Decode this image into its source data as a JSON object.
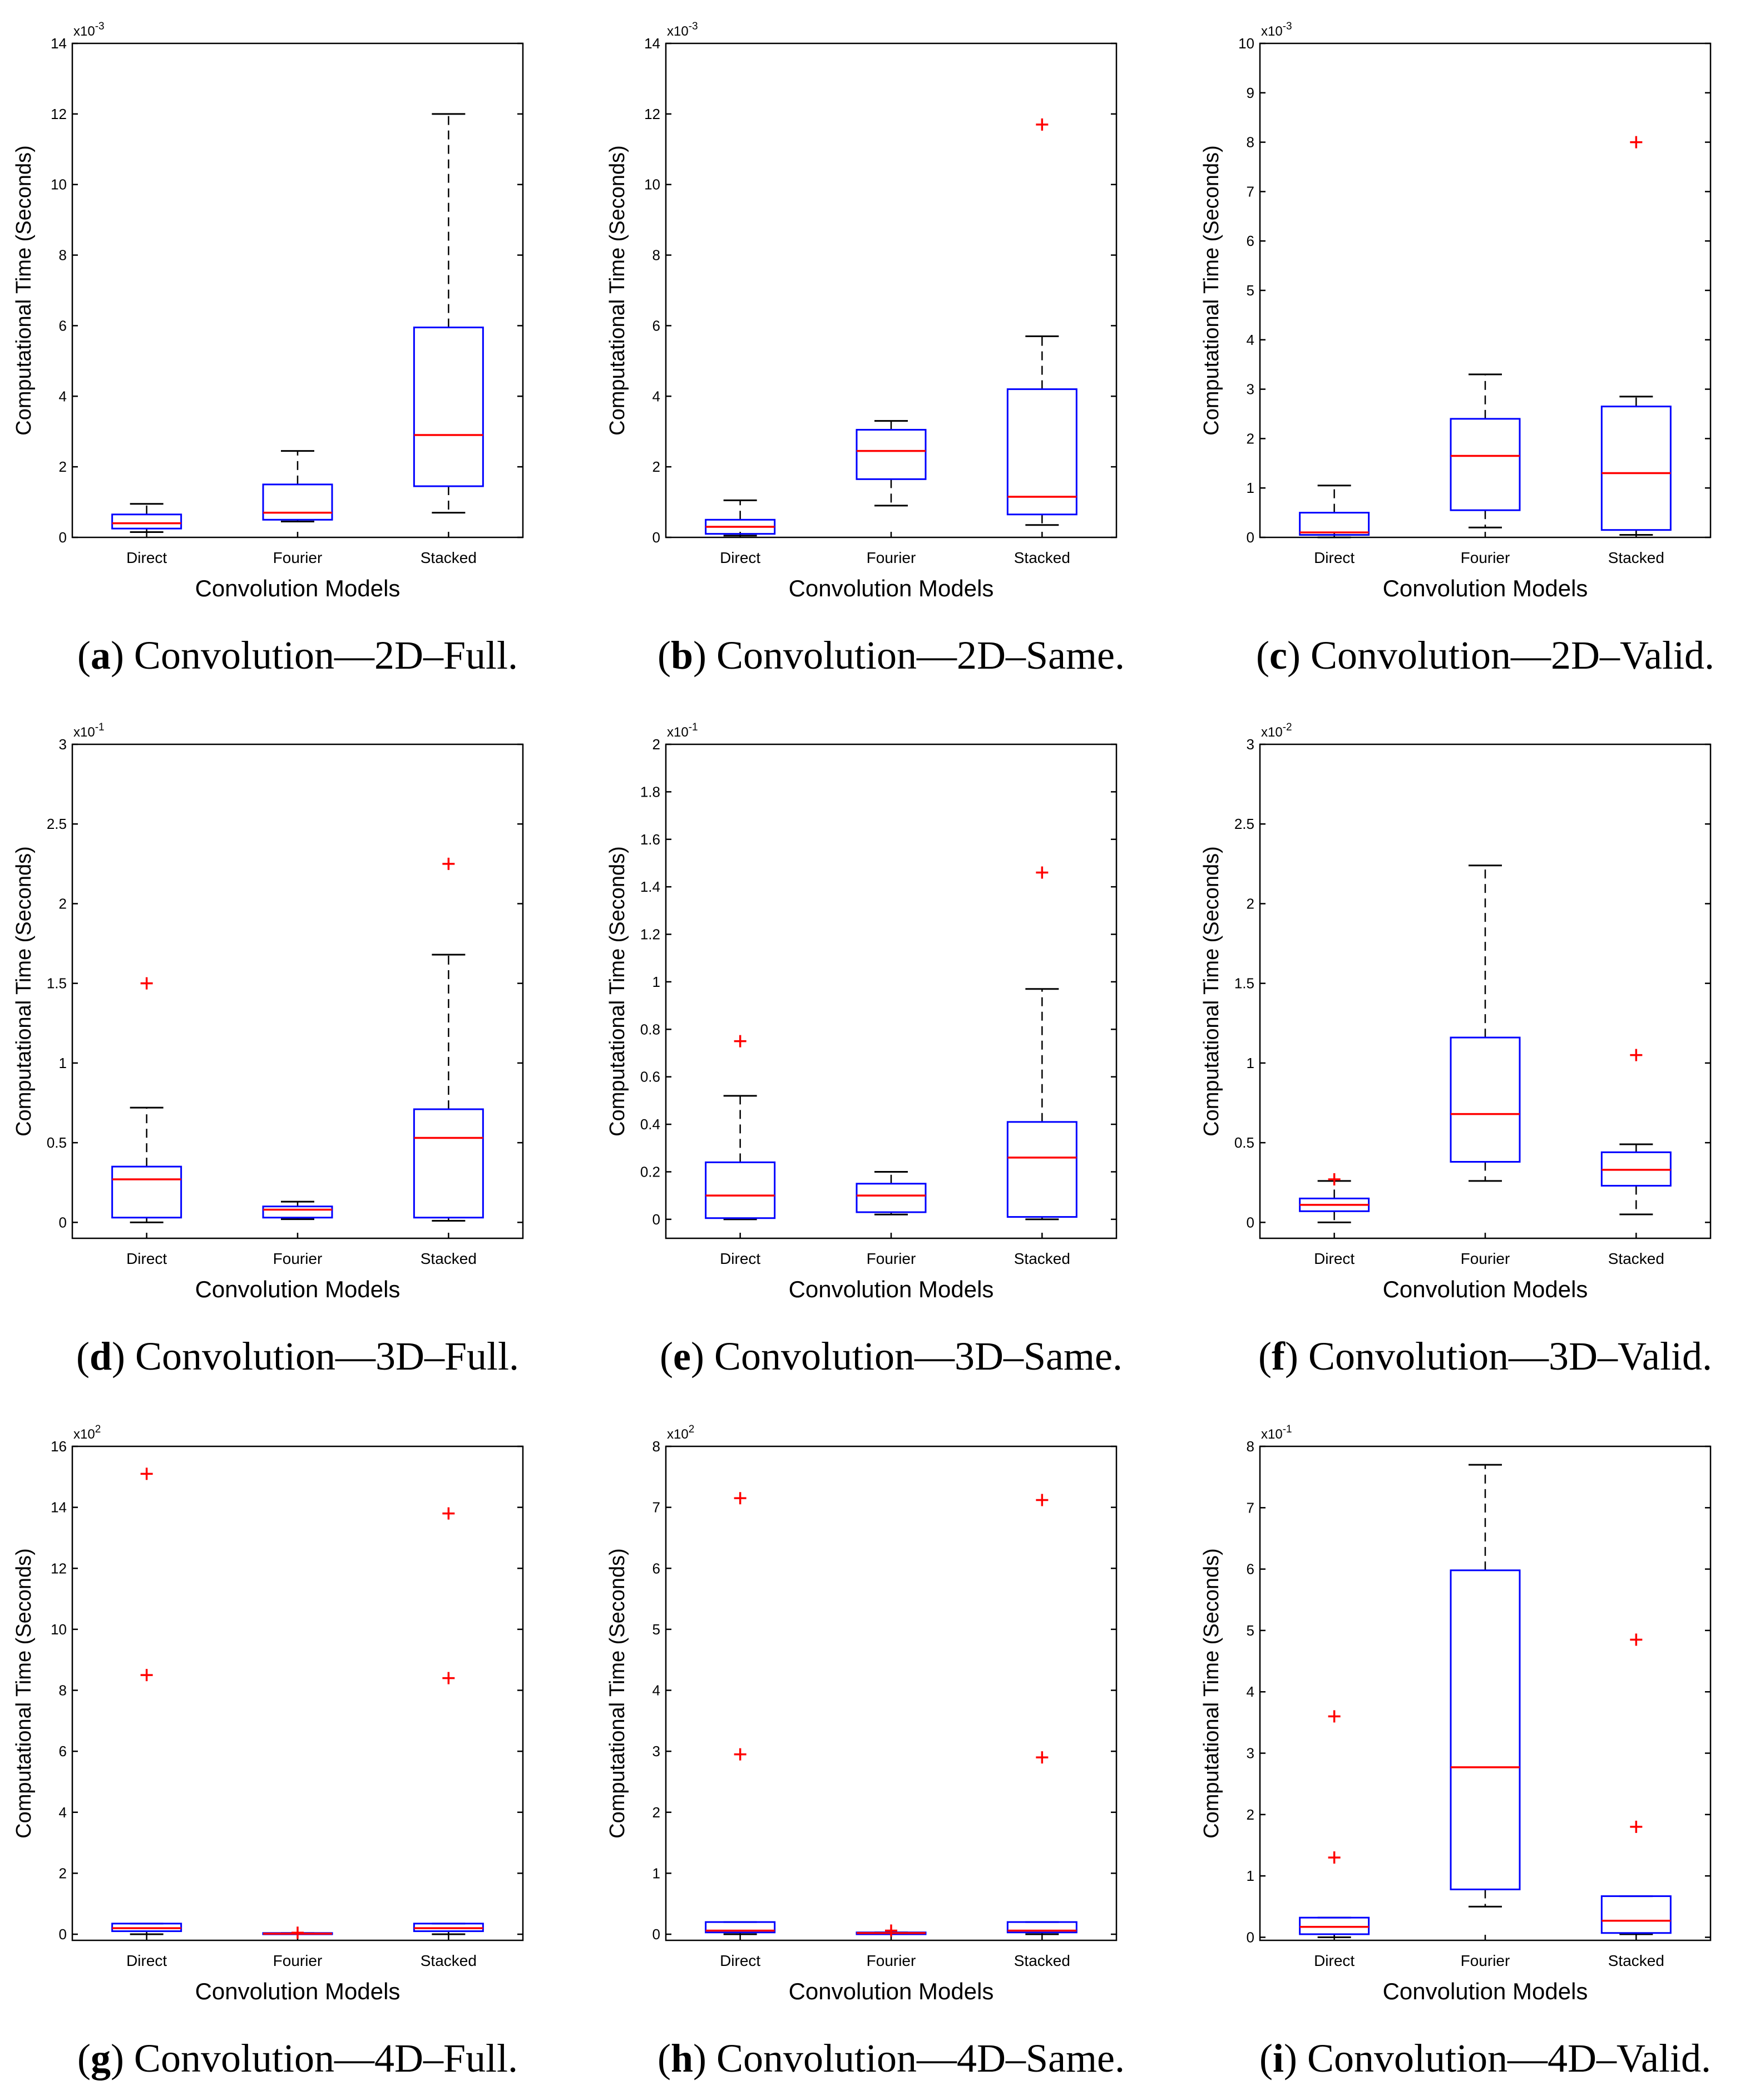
{
  "figure": {
    "xlabel": "Convolution Models",
    "ylabel": "Computational Time (Seconds)",
    "categories": [
      "Direct",
      "Fourier",
      "Stacked"
    ]
  },
  "chart_data": [
    {
      "type": "box",
      "panel": "a",
      "caption": "Convolution—2D–Full.",
      "exponent_label": "x10-3",
      "exponent_base": "x10",
      "exponent_power": "-3",
      "title": "",
      "xlabel": "Convolution Models",
      "ylabel": "Computational Time (Seconds)",
      "ylim": [
        0,
        14
      ],
      "yticks": [
        0,
        2,
        4,
        6,
        8,
        10,
        12,
        14
      ],
      "series": [
        {
          "name": "Direct",
          "whisker_low": 0.15,
          "q1": 0.25,
          "median": 0.4,
          "q3": 0.65,
          "whisker_high": 0.95,
          "outliers": []
        },
        {
          "name": "Fourier",
          "whisker_low": 0.45,
          "q1": 0.5,
          "median": 0.7,
          "q3": 1.5,
          "whisker_high": 2.45,
          "outliers": []
        },
        {
          "name": "Stacked",
          "whisker_low": 0.7,
          "q1": 1.45,
          "median": 2.9,
          "q3": 5.95,
          "whisker_high": 12.0,
          "outliers": []
        }
      ]
    },
    {
      "type": "box",
      "panel": "b",
      "caption": "Convolution—2D–Same.",
      "exponent_label": "x10-3",
      "exponent_base": "x10",
      "exponent_power": "-3",
      "title": "",
      "xlabel": "Convolution Models",
      "ylabel": "Computational Time (Seconds)",
      "ylim": [
        0,
        14
      ],
      "yticks": [
        0,
        2,
        4,
        6,
        8,
        10,
        12,
        14
      ],
      "series": [
        {
          "name": "Direct",
          "whisker_low": 0.05,
          "q1": 0.1,
          "median": 0.3,
          "q3": 0.5,
          "whisker_high": 1.05,
          "outliers": []
        },
        {
          "name": "Fourier",
          "whisker_low": 0.9,
          "q1": 1.65,
          "median": 2.45,
          "q3": 3.05,
          "whisker_high": 3.3,
          "outliers": []
        },
        {
          "name": "Stacked",
          "whisker_low": 0.35,
          "q1": 0.65,
          "median": 1.15,
          "q3": 4.2,
          "whisker_high": 5.7,
          "outliers": [
            11.7
          ]
        }
      ]
    },
    {
      "type": "box",
      "panel": "c",
      "caption": "Convolution—2D–Valid.",
      "exponent_label": "x10-3",
      "exponent_base": "x10",
      "exponent_power": "-3",
      "title": "",
      "xlabel": "Convolution Models",
      "ylabel": "Computational Time (Seconds)",
      "ylim": [
        0,
        10
      ],
      "yticks": [
        0,
        1,
        2,
        3,
        4,
        5,
        6,
        7,
        8,
        9,
        10
      ],
      "series": [
        {
          "name": "Direct",
          "whisker_low": 0.0,
          "q1": 0.05,
          "median": 0.1,
          "q3": 0.5,
          "whisker_high": 1.05,
          "outliers": []
        },
        {
          "name": "Fourier",
          "whisker_low": 0.2,
          "q1": 0.55,
          "median": 1.65,
          "q3": 2.4,
          "whisker_high": 3.3,
          "outliers": []
        },
        {
          "name": "Stacked",
          "whisker_low": 0.05,
          "q1": 0.15,
          "median": 1.3,
          "q3": 2.65,
          "whisker_high": 2.85,
          "outliers": [
            8.0
          ]
        }
      ]
    },
    {
      "type": "box",
      "panel": "d",
      "caption": "Convolution—3D–Full.",
      "exponent_label": "x10-1",
      "exponent_base": "x10",
      "exponent_power": "-1",
      "title": "",
      "xlabel": "Convolution Models",
      "ylabel": "Computational Time (Seconds)",
      "ylim": [
        -0.1,
        3
      ],
      "yticks": [
        0,
        0.5,
        1,
        1.5,
        2,
        2.5,
        3
      ],
      "series": [
        {
          "name": "Direct",
          "whisker_low": 0.0,
          "q1": 0.03,
          "median": 0.27,
          "q3": 0.35,
          "whisker_high": 0.72,
          "outliers": [
            1.5
          ]
        },
        {
          "name": "Fourier",
          "whisker_low": 0.02,
          "q1": 0.03,
          "median": 0.08,
          "q3": 0.1,
          "whisker_high": 0.13,
          "outliers": []
        },
        {
          "name": "Stacked",
          "whisker_low": 0.01,
          "q1": 0.03,
          "median": 0.53,
          "q3": 0.71,
          "whisker_high": 1.68,
          "outliers": [
            2.25
          ]
        }
      ]
    },
    {
      "type": "box",
      "panel": "e",
      "caption": "Convolution—3D–Same.",
      "exponent_label": "x10-1",
      "exponent_base": "x10",
      "exponent_power": "-1",
      "title": "",
      "xlabel": "Convolution Models",
      "ylabel": "Computational Time (Seconds)",
      "ylim": [
        -0.08,
        2
      ],
      "yticks": [
        0,
        0.2,
        0.4,
        0.6,
        0.8,
        1,
        1.2,
        1.4,
        1.6,
        1.8,
        2
      ],
      "series": [
        {
          "name": "Direct",
          "whisker_low": 0.0,
          "q1": 0.005,
          "median": 0.1,
          "q3": 0.24,
          "whisker_high": 0.52,
          "outliers": [
            0.75
          ]
        },
        {
          "name": "Fourier",
          "whisker_low": 0.02,
          "q1": 0.03,
          "median": 0.1,
          "q3": 0.15,
          "whisker_high": 0.2,
          "outliers": []
        },
        {
          "name": "Stacked",
          "whisker_low": 0.0,
          "q1": 0.01,
          "median": 0.26,
          "q3": 0.41,
          "whisker_high": 0.97,
          "outliers": [
            1.46
          ]
        }
      ]
    },
    {
      "type": "box",
      "panel": "f",
      "caption": "Convolution—3D–Valid.",
      "exponent_label": "x10-2",
      "exponent_base": "x10",
      "exponent_power": "-2",
      "title": "",
      "xlabel": "Convolution Models",
      "ylabel": "Computational Time (Seconds)",
      "ylim": [
        -0.1,
        3
      ],
      "yticks": [
        0,
        0.5,
        1,
        1.5,
        2,
        2.5,
        3
      ],
      "series": [
        {
          "name": "Direct",
          "whisker_low": 0.0,
          "q1": 0.07,
          "median": 0.11,
          "q3": 0.15,
          "whisker_high": 0.26,
          "outliers": [
            0.27
          ]
        },
        {
          "name": "Fourier",
          "whisker_low": 0.26,
          "q1": 0.38,
          "median": 0.68,
          "q3": 1.16,
          "whisker_high": 2.24,
          "outliers": []
        },
        {
          "name": "Stacked",
          "whisker_low": 0.05,
          "q1": 0.23,
          "median": 0.33,
          "q3": 0.44,
          "whisker_high": 0.49,
          "outliers": [
            1.05
          ]
        }
      ]
    },
    {
      "type": "box",
      "panel": "g",
      "caption": "Convolution—4D–Full.",
      "exponent_label": "x102",
      "exponent_base": "x10",
      "exponent_power": "2",
      "title": "",
      "xlabel": "Convolution Models",
      "ylabel": "Computational Time (Seconds)",
      "ylim": [
        -0.2,
        16
      ],
      "yticks": [
        0,
        2,
        4,
        6,
        8,
        10,
        12,
        14,
        16
      ],
      "series": [
        {
          "name": "Direct",
          "whisker_low": 0.0,
          "q1": 0.1,
          "median": 0.2,
          "q3": 0.35,
          "whisker_high": 0.35,
          "outliers": [
            8.5,
            15.1
          ]
        },
        {
          "name": "Fourier",
          "whisker_low": 0.0,
          "q1": 0.0,
          "median": 0.02,
          "q3": 0.04,
          "whisker_high": 0.04,
          "outliers": [
            0.05
          ]
        },
        {
          "name": "Stacked",
          "whisker_low": 0.0,
          "q1": 0.1,
          "median": 0.2,
          "q3": 0.35,
          "whisker_high": 0.35,
          "outliers": [
            8.4,
            13.8
          ]
        }
      ]
    },
    {
      "type": "box",
      "panel": "h",
      "caption": "Convolution—4D–Same.",
      "exponent_label": "x102",
      "exponent_base": "x10",
      "exponent_power": "2",
      "title": "",
      "xlabel": "Convolution Models",
      "ylabel": "Computational Time (Seconds)",
      "ylim": [
        -0.1,
        8
      ],
      "yticks": [
        0,
        1,
        2,
        3,
        4,
        5,
        6,
        7,
        8
      ],
      "series": [
        {
          "name": "Direct",
          "whisker_low": 0.0,
          "q1": 0.03,
          "median": 0.06,
          "q3": 0.2,
          "whisker_high": 0.2,
          "outliers": [
            2.95,
            7.15
          ]
        },
        {
          "name": "Fourier",
          "whisker_low": 0.0,
          "q1": 0.0,
          "median": 0.02,
          "q3": 0.03,
          "whisker_high": 0.03,
          "outliers": [
            0.06
          ]
        },
        {
          "name": "Stacked",
          "whisker_low": 0.0,
          "q1": 0.03,
          "median": 0.06,
          "q3": 0.2,
          "whisker_high": 0.2,
          "outliers": [
            2.9,
            7.12
          ]
        }
      ]
    },
    {
      "type": "box",
      "panel": "i",
      "caption": "Convolution—4D–Valid.",
      "exponent_label": "x10-1",
      "exponent_base": "x10",
      "exponent_power": "-1",
      "title": "",
      "xlabel": "Convolution Models",
      "ylabel": "Computational Time (Seconds)",
      "ylim": [
        -0.05,
        8
      ],
      "yticks": [
        0,
        1,
        2,
        3,
        4,
        5,
        6,
        7,
        8
      ],
      "series": [
        {
          "name": "Direct",
          "whisker_low": 0.0,
          "q1": 0.05,
          "median": 0.17,
          "q3": 0.32,
          "whisker_high": 0.32,
          "outliers": [
            1.3,
            3.6
          ]
        },
        {
          "name": "Fourier",
          "whisker_low": 0.5,
          "q1": 0.78,
          "median": 2.77,
          "q3": 5.98,
          "whisker_high": 7.7,
          "outliers": []
        },
        {
          "name": "Stacked",
          "whisker_low": 0.05,
          "q1": 0.07,
          "median": 0.27,
          "q3": 0.67,
          "whisker_high": 0.67,
          "outliers": [
            1.8,
            4.85
          ]
        }
      ]
    }
  ]
}
